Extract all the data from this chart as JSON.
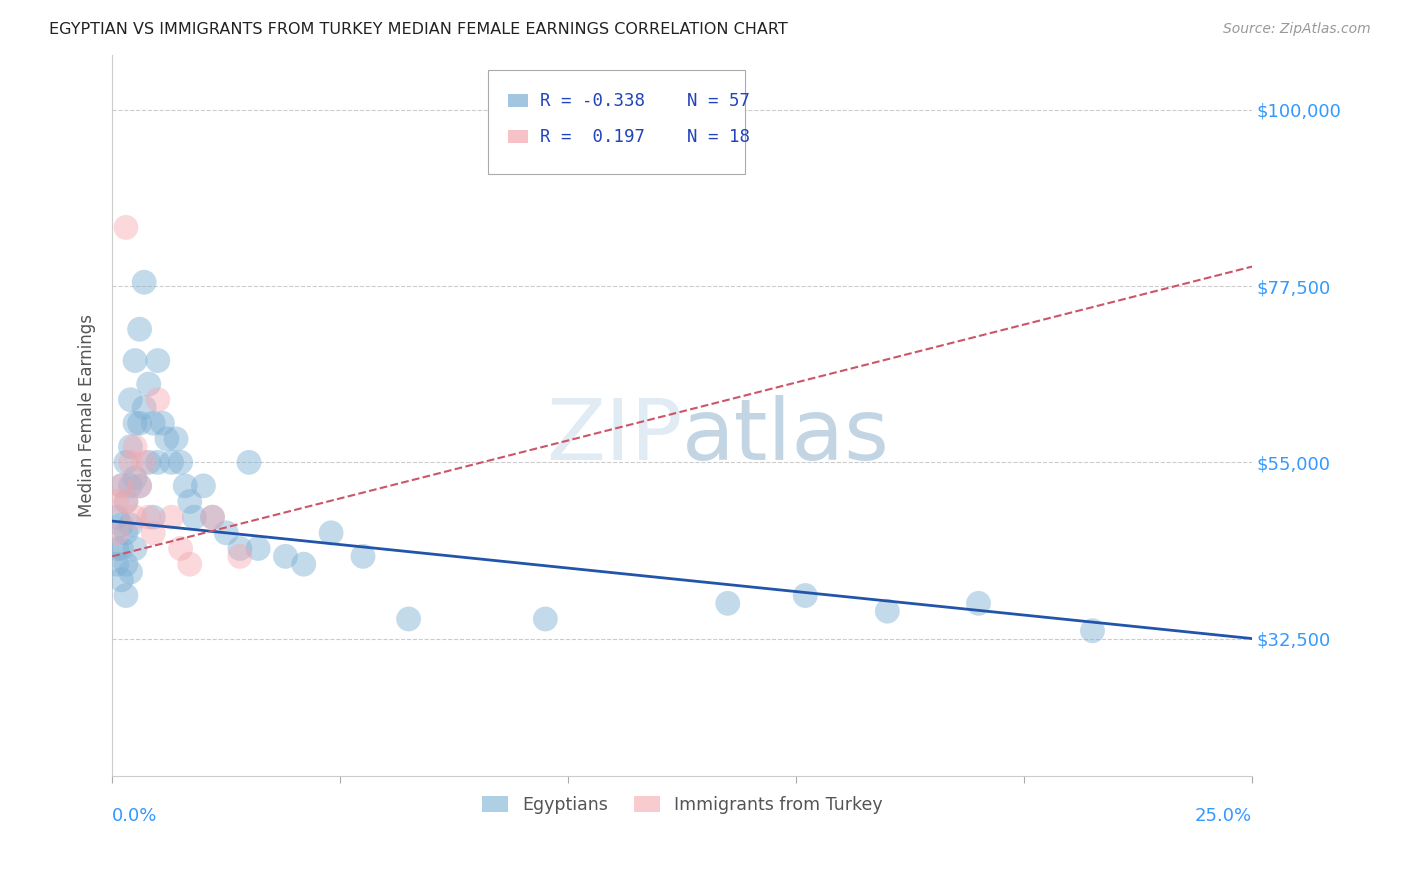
{
  "title": "EGYPTIAN VS IMMIGRANTS FROM TURKEY MEDIAN FEMALE EARNINGS CORRELATION CHART",
  "source": "Source: ZipAtlas.com",
  "ylabel": "Median Female Earnings",
  "xlim": [
    0.0,
    0.25
  ],
  "ylim": [
    15000,
    107000
  ],
  "ytick_vals": [
    32500,
    55000,
    77500,
    100000
  ],
  "ytick_labels": [
    "$32,500",
    "$55,000",
    "$77,500",
    "$100,000"
  ],
  "xtick_vals": [
    0.0,
    0.05,
    0.1,
    0.15,
    0.2,
    0.25
  ],
  "xtick_labels": [
    "0.0%",
    "",
    "",
    "",
    "",
    "25.0%"
  ],
  "blue_color": "#7bafd4",
  "pink_color": "#f4a9b0",
  "line_blue_color": "#2255aa",
  "line_pink_color": "#cc5566",
  "axis_label_color": "#3399ff",
  "watermark_color": "#b8d4ea",
  "blue_trendline": [
    0.0,
    47500,
    0.25,
    32500
  ],
  "pink_trendline": [
    0.0,
    43000,
    0.25,
    80000
  ],
  "eg_x": [
    0.001,
    0.001,
    0.001,
    0.002,
    0.002,
    0.002,
    0.002,
    0.003,
    0.003,
    0.003,
    0.003,
    0.003,
    0.004,
    0.004,
    0.004,
    0.004,
    0.004,
    0.005,
    0.005,
    0.005,
    0.005,
    0.006,
    0.006,
    0.006,
    0.007,
    0.007,
    0.008,
    0.008,
    0.009,
    0.009,
    0.01,
    0.01,
    0.011,
    0.012,
    0.013,
    0.014,
    0.015,
    0.016,
    0.017,
    0.018,
    0.02,
    0.022,
    0.025,
    0.028,
    0.03,
    0.032,
    0.038,
    0.042,
    0.048,
    0.055,
    0.065,
    0.095,
    0.135,
    0.152,
    0.17,
    0.19,
    0.215
  ],
  "eg_y": [
    48000,
    44000,
    42000,
    52000,
    47000,
    44000,
    40000,
    55000,
    50000,
    46000,
    42000,
    38000,
    63000,
    57000,
    52000,
    47000,
    41000,
    68000,
    60000,
    53000,
    44000,
    72000,
    60000,
    52000,
    78000,
    62000,
    65000,
    55000,
    60000,
    48000,
    68000,
    55000,
    60000,
    58000,
    55000,
    58000,
    55000,
    52000,
    50000,
    48000,
    52000,
    48000,
    46000,
    44000,
    55000,
    44000,
    43000,
    42000,
    46000,
    43000,
    35000,
    35000,
    37000,
    38000,
    36000,
    37000,
    33500
  ],
  "tk_x": [
    0.001,
    0.001,
    0.002,
    0.003,
    0.003,
    0.004,
    0.005,
    0.005,
    0.006,
    0.007,
    0.008,
    0.009,
    0.01,
    0.013,
    0.015,
    0.017,
    0.022,
    0.028
  ],
  "tk_y": [
    50000,
    46000,
    52000,
    85000,
    50000,
    55000,
    57000,
    48000,
    52000,
    55000,
    48000,
    46000,
    63000,
    48000,
    44000,
    42000,
    48000,
    43000
  ]
}
